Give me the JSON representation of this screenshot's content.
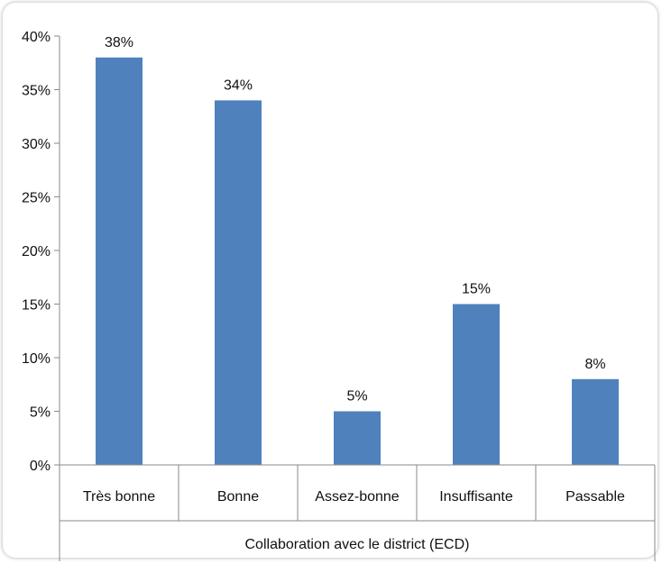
{
  "chart_data": {
    "type": "bar",
    "categories": [
      "Très bonne",
      "Bonne",
      "Assez-bonne",
      "Insuffisante",
      "Passable"
    ],
    "values": [
      38,
      34,
      5,
      15,
      8
    ],
    "data_labels": [
      "38%",
      "34%",
      "5%",
      "15%",
      "8%"
    ],
    "y_ticks": [
      "0%",
      "5%",
      "10%",
      "15%",
      "20%",
      "25%",
      "30%",
      "35%",
      "40%"
    ],
    "title": "",
    "xlabel": "Collaboration avec le district (ECD)",
    "ylabel": "",
    "ylim": [
      0,
      40
    ],
    "grid": false,
    "legend": "none",
    "bar_color": "#4f81bd"
  }
}
